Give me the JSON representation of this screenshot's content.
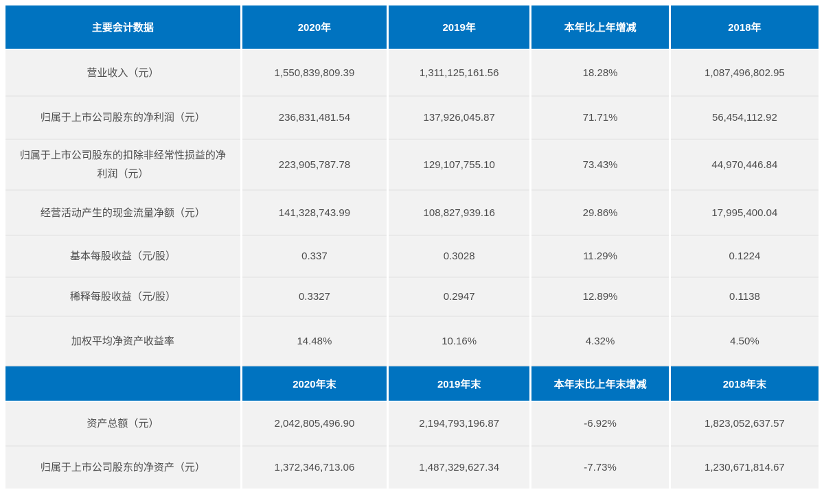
{
  "table": {
    "title": "主要会计数据",
    "colors": {
      "header_bg": "#0073C0",
      "header_text": "#FFFFFF",
      "row_bg": "#F2F2F2",
      "body_text": "#4D4D4D",
      "row_separator": "#E9E9E9",
      "column_gap": "#FFFFFF"
    },
    "section1": {
      "headers": [
        "主要会计数据",
        "2020年",
        "2019年",
        "本年比上年增减",
        "2018年"
      ],
      "rows": [
        [
          "营业收入（元）",
          "1,550,839,809.39",
          "1,311,125,161.56",
          "18.28%",
          "1,087,496,802.95"
        ],
        [
          "归属于上市公司股东的净利润（元）",
          "236,831,481.54",
          "137,926,045.87",
          "71.71%",
          "56,454,112.92"
        ],
        [
          "归属于上市公司股东的扣除非经常性损益的净利润（元）",
          "223,905,787.78",
          "129,107,755.10",
          "73.43%",
          "44,970,446.84"
        ],
        [
          "经营活动产生的现金流量净额（元）",
          "141,328,743.99",
          "108,827,939.16",
          "29.86%",
          "17,995,400.04"
        ],
        [
          "基本每股收益（元/股）",
          "0.337",
          "0.3028",
          "11.29%",
          "0.1224"
        ],
        [
          "稀释每股收益（元/股）",
          "0.3327",
          "0.2947",
          "12.89%",
          "0.1138"
        ],
        [
          "加权平均净资产收益率",
          "14.48%",
          "10.16%",
          "4.32%",
          "4.50%"
        ]
      ]
    },
    "section2": {
      "headers": [
        "",
        "2020年末",
        "2019年末",
        "本年末比上年末增减",
        "2018年末"
      ],
      "rows": [
        [
          "资产总额（元）",
          "2,042,805,496.90",
          "2,194,793,196.87",
          "-6.92%",
          "1,823,052,637.57"
        ],
        [
          "归属于上市公司股东的净资产（元）",
          "1,372,346,713.06",
          "1,487,329,627.34",
          "-7.73%",
          "1,230,671,814.67"
        ]
      ]
    }
  }
}
